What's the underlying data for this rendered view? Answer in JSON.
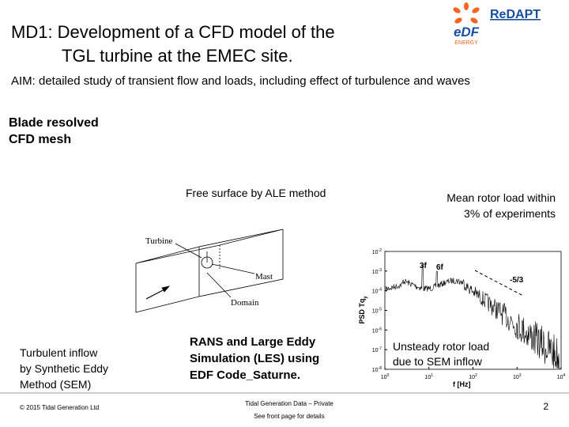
{
  "header": {
    "logo": {
      "project": "ReDAPT",
      "brand": "eDF",
      "brand_sub": "ENERGY"
    },
    "title_lines": [
      "MD1: Development of a CFD model of the",
      "TGL turbine at the EMEC site."
    ],
    "aim": "AIM: detailed study of transient flow and loads, including effect of turbulence and waves"
  },
  "body": {
    "mesh_note": [
      "Blade resolved",
      "CFD mesh"
    ],
    "free_surface": "Free surface by ALE method",
    "rotor_load": [
      "Mean rotor load within",
      "3% of experiments"
    ],
    "domain_labels": {
      "turbine": "Turbine",
      "mast": "Mast",
      "domain": "Domain"
    },
    "inflow_note": [
      "Turbulent inflow",
      "by Synthetic Eddy",
      "Method (SEM)"
    ],
    "solver_note": [
      "RANS and Large Eddy",
      "Simulation (LES) using",
      "EDF Code_Saturne."
    ],
    "spectrum": {
      "y_label": "PSD Tq",
      "y_label_sub": "y",
      "x_label": "f [Hz]",
      "peaks": [
        "3f",
        "6f"
      ],
      "slope": "-5/3",
      "caption": [
        "Unsteady rotor load",
        "due to SEM inflow"
      ],
      "yticks": [
        {
          "base": "10",
          "exp": "-2"
        },
        {
          "base": "10",
          "exp": "-3"
        },
        {
          "base": "10",
          "exp": "-4"
        },
        {
          "base": "10",
          "exp": "-5"
        },
        {
          "base": "10",
          "exp": "-6"
        },
        {
          "base": "10",
          "exp": "-7"
        },
        {
          "base": "10",
          "exp": "-8"
        }
      ],
      "xticks": [
        {
          "base": "10",
          "exp": "0"
        },
        {
          "base": "10",
          "exp": "1"
        },
        {
          "base": "10",
          "exp": "2"
        },
        {
          "base": "10",
          "exp": "3"
        },
        {
          "base": "10",
          "exp": "4"
        }
      ]
    }
  },
  "footer": {
    "copyright": "© 2015 Tidal Generation Ltd",
    "notice": [
      "Tidal Generation Data – Private",
      "See front page for details"
    ],
    "page": "2"
  }
}
